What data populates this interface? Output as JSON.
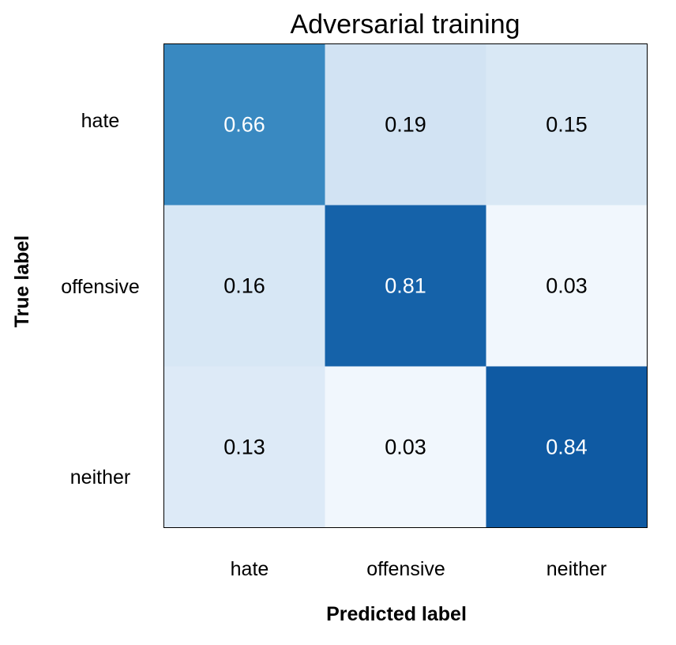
{
  "chart_data": {
    "type": "heatmap",
    "title": "Adversarial training",
    "xlabel": "Predicted label",
    "ylabel": "True label",
    "x_categories": [
      "hate",
      "offensive",
      "neither"
    ],
    "y_categories": [
      "hate",
      "offensive",
      "neither"
    ],
    "values": [
      [
        0.66,
        0.19,
        0.15
      ],
      [
        0.16,
        0.81,
        0.03
      ],
      [
        0.13,
        0.03,
        0.84
      ]
    ],
    "value_range": [
      0,
      1
    ],
    "colormap": "Blues",
    "colors": {
      "low": "#f7fbff",
      "high": "#08306b",
      "text_dark": "#000000",
      "text_light": "#ffffff"
    },
    "grid": false,
    "legend": "none"
  }
}
